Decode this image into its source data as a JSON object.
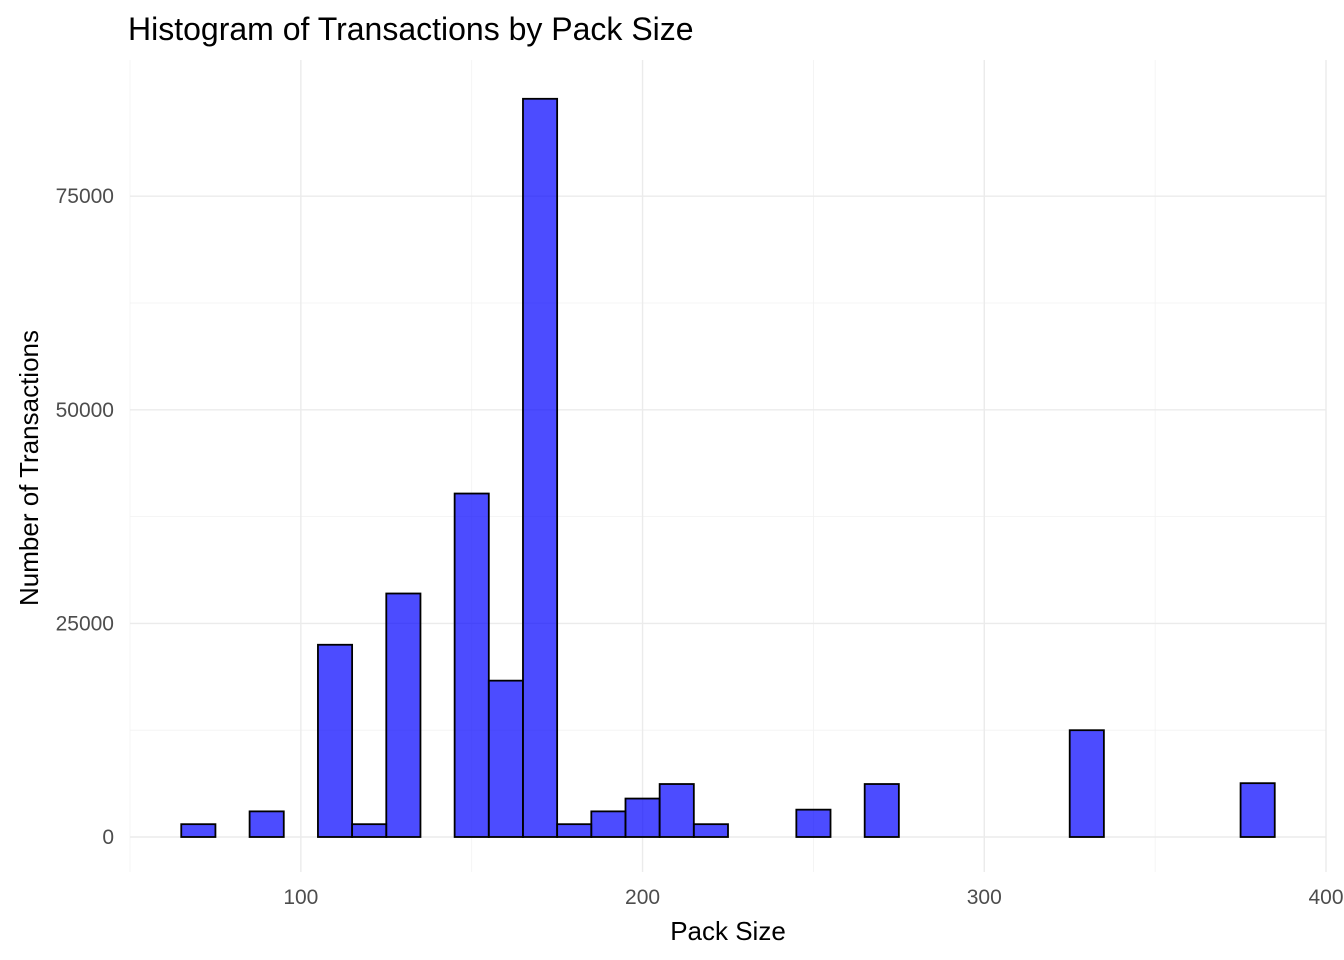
{
  "chart_data": {
    "type": "bar",
    "title": "Histogram of Transactions by Pack Size",
    "xlabel": "Pack Size",
    "ylabel": "Number of Transactions",
    "xlim": [
      50,
      400
    ],
    "ylim": [
      0,
      87000
    ],
    "x_ticks": [
      100,
      200,
      300,
      400
    ],
    "y_ticks": [
      0,
      25000,
      50000,
      75000
    ],
    "grid": true,
    "bar_color": "#0000ff",
    "bar_opacity": 0.7,
    "bar_outline": "#000000",
    "bin_width": 10,
    "bins": [
      {
        "x_start": 65,
        "x_end": 75,
        "count": 1500
      },
      {
        "x_start": 85,
        "x_end": 95,
        "count": 3000
      },
      {
        "x_start": 105,
        "x_end": 115,
        "count": 22500
      },
      {
        "x_start": 115,
        "x_end": 125,
        "count": 1500
      },
      {
        "x_start": 125,
        "x_end": 135,
        "count": 28500
      },
      {
        "x_start": 145,
        "x_end": 155,
        "count": 40200
      },
      {
        "x_start": 155,
        "x_end": 165,
        "count": 18300
      },
      {
        "x_start": 165,
        "x_end": 175,
        "count": 86400
      },
      {
        "x_start": 175,
        "x_end": 185,
        "count": 1500
      },
      {
        "x_start": 185,
        "x_end": 195,
        "count": 3000
      },
      {
        "x_start": 195,
        "x_end": 205,
        "count": 4500
      },
      {
        "x_start": 205,
        "x_end": 215,
        "count": 6200
      },
      {
        "x_start": 215,
        "x_end": 225,
        "count": 1500
      },
      {
        "x_start": 245,
        "x_end": 255,
        "count": 3200
      },
      {
        "x_start": 265,
        "x_end": 275,
        "count": 6200
      },
      {
        "x_start": 325,
        "x_end": 335,
        "count": 12500
      },
      {
        "x_start": 375,
        "x_end": 385,
        "count": 6300
      }
    ]
  }
}
